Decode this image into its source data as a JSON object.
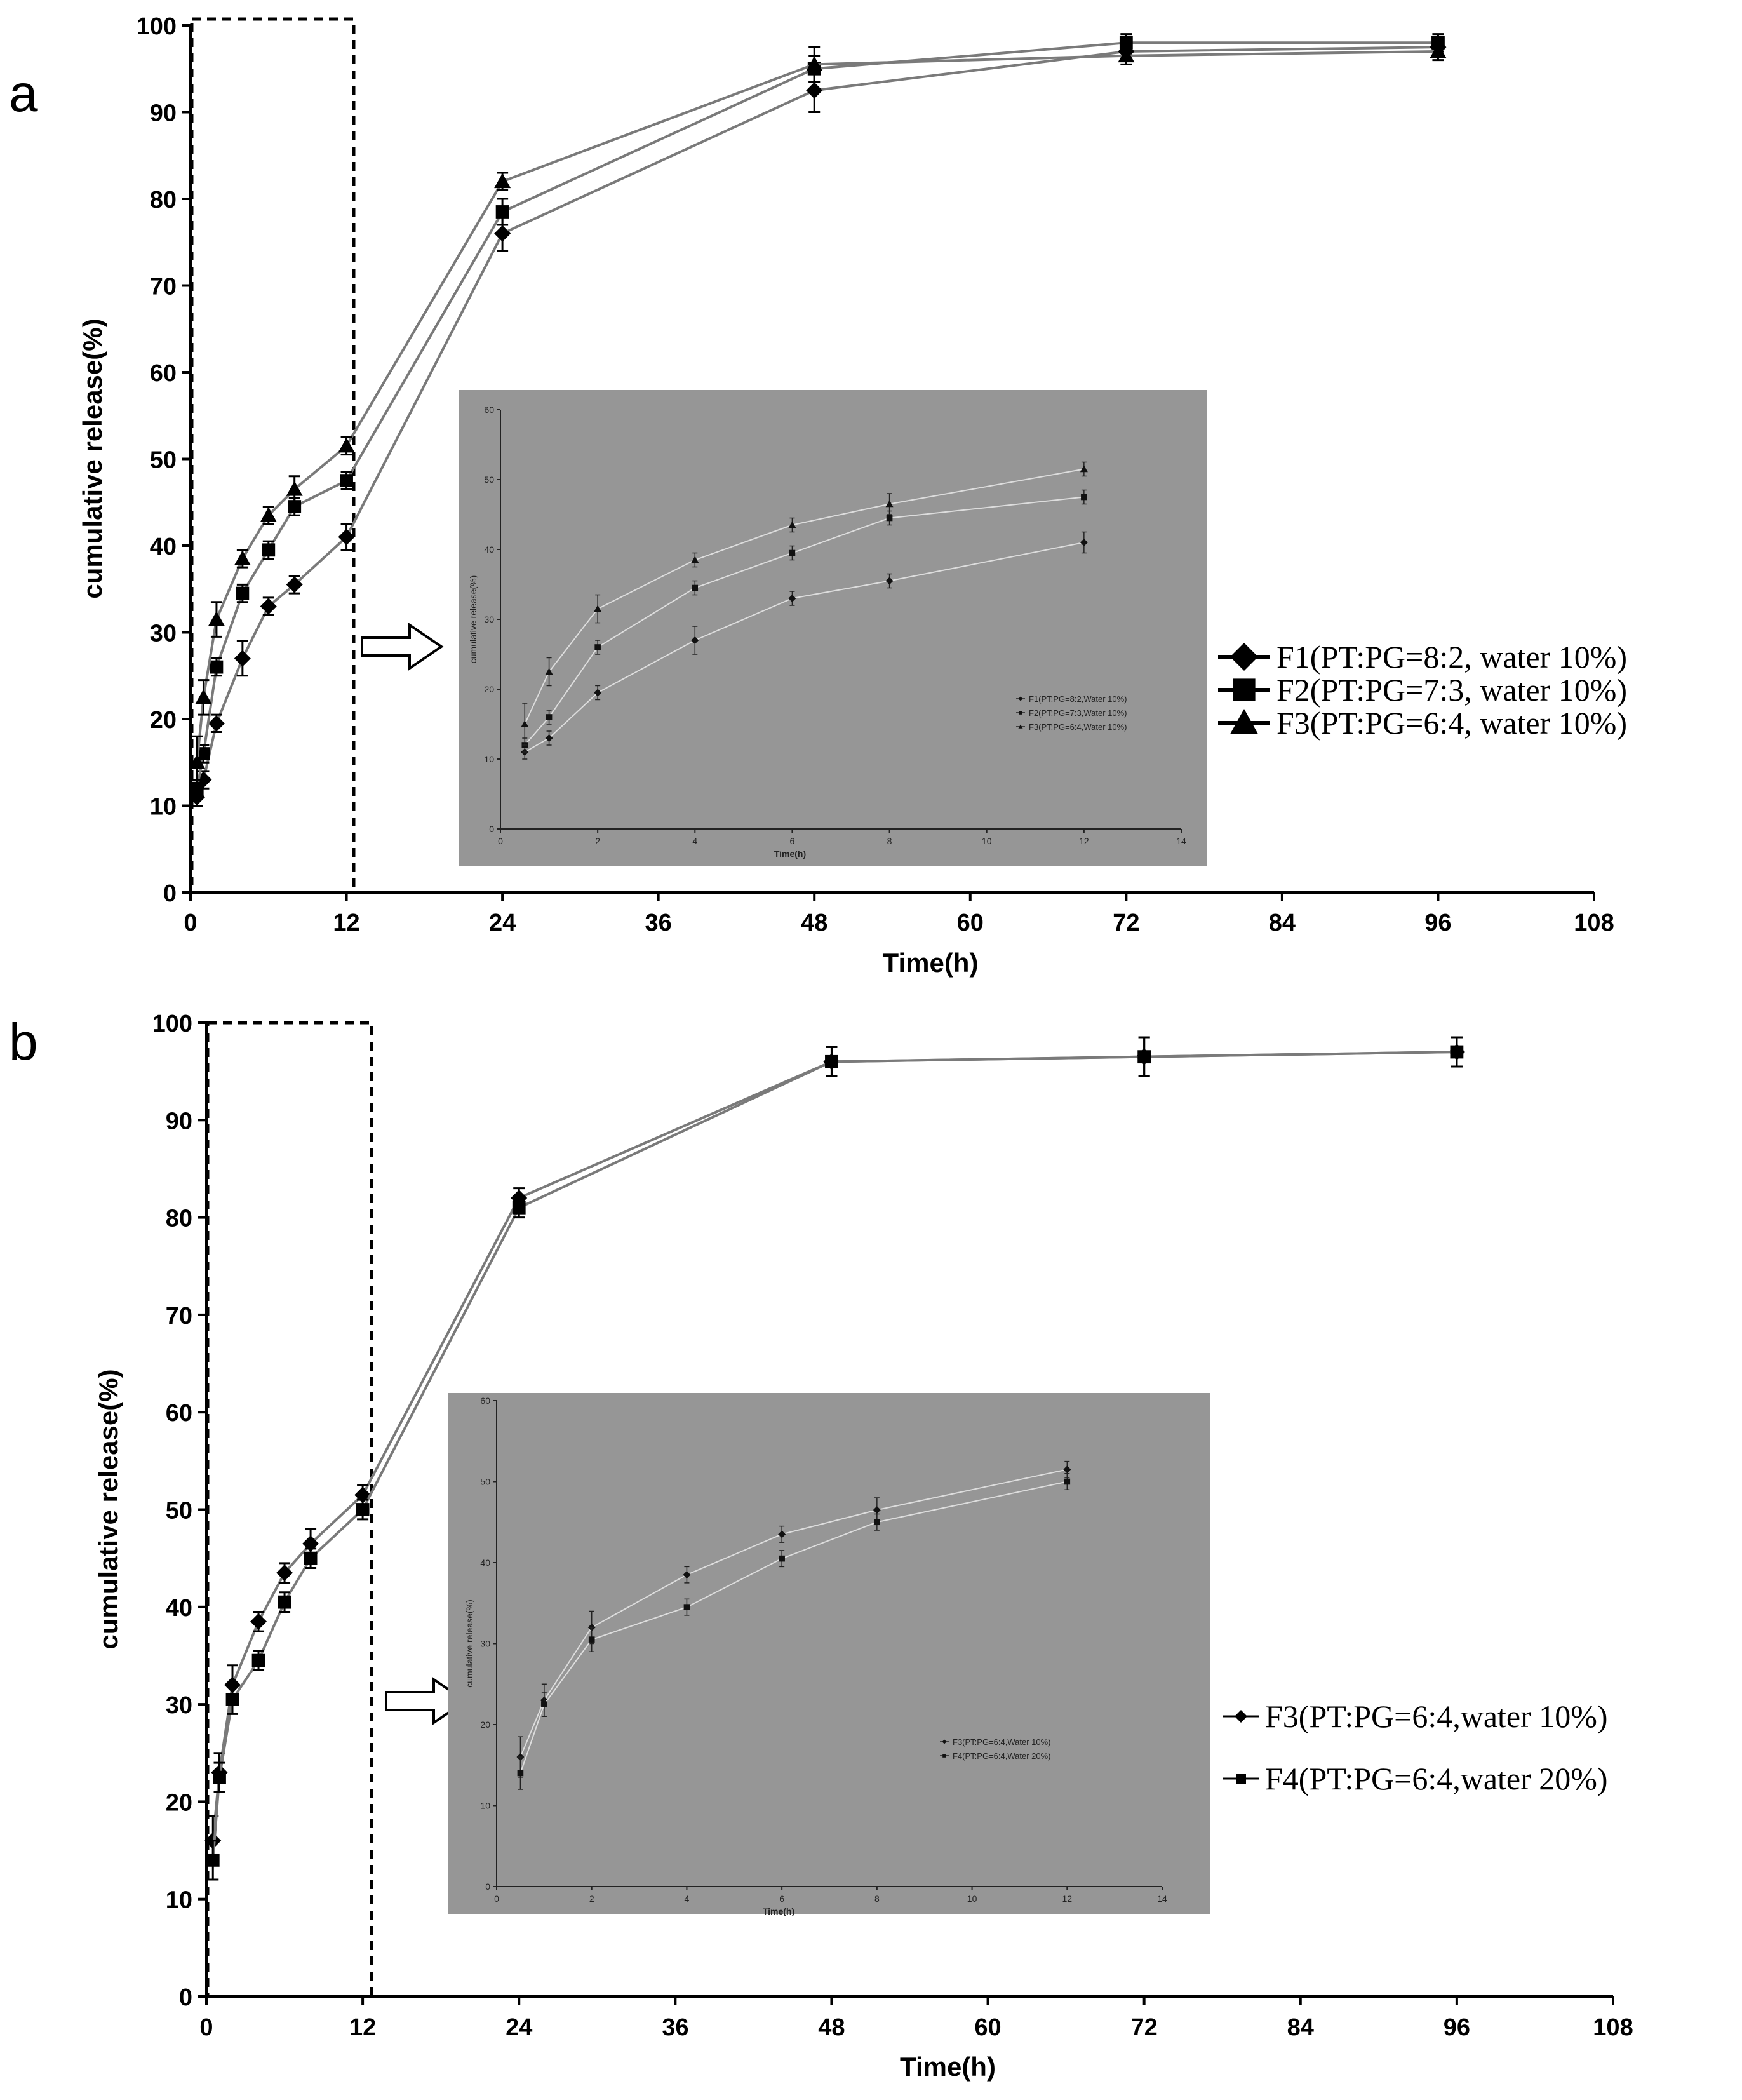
{
  "figure": {
    "panels": [
      {
        "label": "a",
        "legend": [
          "F1(PT:PG=8:2, water 10%)",
          "F2(PT:PG=7:3, water 10%)",
          "F3(PT:PG=6:4, water 10%)"
        ],
        "inset_legend": [
          "F1(PT:PG=8:2,Water 10%)",
          "F2(PT:PG=7:3,Water 10%)",
          "F3(PT:PG=6:4,Water 10%)"
        ]
      },
      {
        "label": "b",
        "legend": [
          "F3(PT:PG=6:4,water 10%)",
          "F4(PT:PG=6:4,water 20%)"
        ],
        "inset_legend": [
          "F3(PT:PG=6:4,Water 10%)",
          "F4(PT:PG=6:4,Water 20%)"
        ]
      }
    ]
  },
  "chart_data": [
    {
      "type": "line",
      "panel": "a",
      "title": "",
      "xlabel": "Time(h)",
      "ylabel": "cumulative release(%)",
      "xlim": [
        0,
        108
      ],
      "ylim": [
        0,
        100
      ],
      "xticks": [
        0,
        12,
        24,
        36,
        48,
        60,
        72,
        84,
        96,
        108
      ],
      "yticks": [
        0,
        10,
        20,
        30,
        40,
        50,
        60,
        70,
        80,
        90,
        100
      ],
      "grid": false,
      "legend_position": "right",
      "x": [
        0.5,
        1,
        2,
        4,
        6,
        8,
        12,
        24,
        48,
        72,
        96
      ],
      "series": [
        {
          "name": "F1(PT:PG=8:2, water 10%)",
          "marker": "diamond",
          "values": [
            11,
            13,
            19.5,
            27,
            33,
            35.5,
            41,
            76,
            92.5,
            97,
            97.5
          ],
          "errors": [
            1,
            1,
            1,
            2,
            1,
            1,
            1.5,
            2,
            2.5,
            1,
            1
          ]
        },
        {
          "name": "F2(PT:PG=7:3, water 10%)",
          "marker": "square",
          "values": [
            12,
            16,
            26,
            34.5,
            39.5,
            44.5,
            47.5,
            78.5,
            95,
            98,
            98
          ],
          "errors": [
            1,
            1,
            1,
            1,
            1,
            1,
            1,
            1.5,
            1.5,
            1,
            1
          ]
        },
        {
          "name": "F3(PT:PG=6:4, water 10%)",
          "marker": "triangle",
          "values": [
            15,
            22.5,
            31.5,
            38.5,
            43.5,
            46.5,
            51.5,
            82,
            95.5,
            96.5,
            97
          ],
          "errors": [
            3,
            2,
            2,
            1,
            1,
            1.5,
            1,
            1,
            2,
            1,
            1
          ]
        }
      ],
      "inset": {
        "xlabel": "Time(h)",
        "ylabel": "cumulative release(%)",
        "xlim": [
          0,
          14
        ],
        "ylim": [
          0,
          60
        ],
        "xticks": [
          0,
          2,
          4,
          6,
          8,
          10,
          12,
          14
        ],
        "yticks": [
          0,
          10,
          20,
          30,
          40,
          50,
          60
        ]
      }
    },
    {
      "type": "line",
      "panel": "b",
      "title": "",
      "xlabel": "Time(h)",
      "ylabel": "cumulative release(%)",
      "xlim": [
        0,
        108
      ],
      "ylim": [
        0,
        100
      ],
      "xticks": [
        0,
        12,
        24,
        36,
        48,
        60,
        72,
        84,
        96,
        108
      ],
      "yticks": [
        0,
        10,
        20,
        30,
        40,
        50,
        60,
        70,
        80,
        90,
        100
      ],
      "grid": false,
      "legend_position": "right",
      "x": [
        0.5,
        1,
        2,
        4,
        6,
        8,
        12,
        24,
        48,
        72,
        96
      ],
      "series": [
        {
          "name": "F3(PT:PG=6:4,water 10%)",
          "marker": "diamond",
          "values": [
            16,
            23,
            32,
            38.5,
            43.5,
            46.5,
            51.5,
            82,
            96,
            96.5,
            97
          ],
          "errors": [
            2.5,
            2,
            2,
            1,
            1,
            1.5,
            1,
            1,
            1.5,
            2,
            1.5
          ]
        },
        {
          "name": "F4(PT:PG=6:4,water 20%)",
          "marker": "square",
          "values": [
            14,
            22.5,
            30.5,
            34.5,
            40.5,
            45,
            50,
            81,
            96,
            96.5,
            97
          ],
          "errors": [
            2,
            1.5,
            1.5,
            1,
            1,
            1,
            1,
            1,
            1.5,
            2,
            1.5
          ]
        }
      ],
      "inset": {
        "xlabel": "Time(h)",
        "ylabel": "cumulative release(%)",
        "xlim": [
          0,
          14
        ],
        "ylim": [
          0,
          60
        ],
        "xticks": [
          0,
          2,
          4,
          6,
          8,
          10,
          12,
          14
        ],
        "yticks": [
          0,
          10,
          20,
          30,
          40,
          50,
          60
        ]
      }
    }
  ]
}
